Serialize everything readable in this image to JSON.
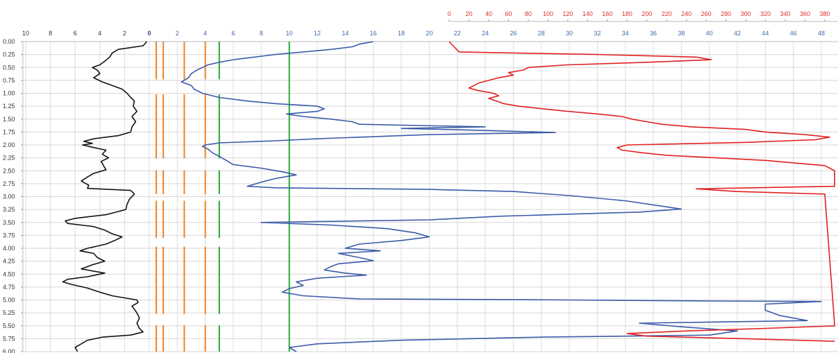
{
  "chart_data": {
    "type": "line",
    "title": "",
    "grid": true,
    "y_axis": {
      "orientation": "depth-down",
      "range": [
        0,
        6
      ],
      "tick_labels": [
        "0.00",
        "0.25",
        "0.50",
        "0.75",
        "1.00",
        "1.25",
        "1.50",
        "1.75",
        "2.00",
        "2.25",
        "2.50",
        "2.75",
        "3.00",
        "3.25",
        "3.50",
        "3.75",
        "4.00",
        "4.25",
        "4.50",
        "4.75",
        "5.00",
        "5.25",
        "5.50",
        "5.75",
        "6.00"
      ]
    },
    "x_axes": [
      {
        "id": "black",
        "color": "#333333",
        "range": [
          10,
          -10
        ],
        "tick_labels": [
          "10",
          "8",
          "6",
          "4",
          "2",
          "0"
        ]
      },
      {
        "id": "blue",
        "color": "#4068b0",
        "range": [
          0,
          48
        ],
        "tick_labels": [
          "0",
          "2",
          "4",
          "6",
          "8",
          "10",
          "12",
          "14",
          "16",
          "18",
          "20",
          "22",
          "24",
          "26",
          "28",
          "30",
          "32",
          "34",
          "36",
          "38",
          "40",
          "42",
          "44",
          "46",
          "48"
        ]
      },
      {
        "id": "red",
        "color": "#e03030",
        "range": [
          0,
          390
        ],
        "tick_labels": [
          "0",
          "20",
          "40",
          "60",
          "80",
          "100",
          "120",
          "140",
          "160",
          "180",
          "200",
          "220",
          "240",
          "260",
          "280",
          "300",
          "320",
          "340",
          "360",
          "380"
        ]
      }
    ],
    "reference_lines": [
      {
        "axis": "blue",
        "value": 0.5,
        "color": "#f08020"
      },
      {
        "axis": "blue",
        "value": 1,
        "color": "#f08020"
      },
      {
        "axis": "blue",
        "value": 2.5,
        "color": "#f08020"
      },
      {
        "axis": "blue",
        "value": 4,
        "color": "#f08020"
      },
      {
        "axis": "blue",
        "value": 5,
        "color": "#22aa33"
      },
      {
        "axis": "blue",
        "value": 10,
        "color": "#22aa33"
      }
    ],
    "series": [
      {
        "axis": "black",
        "color": "#111111",
        "points": [
          [
            0.0,
            0.2
          ],
          [
            0.08,
            0.5
          ],
          [
            0.15,
            2.5
          ],
          [
            0.22,
            3.0
          ],
          [
            0.3,
            3.2
          ],
          [
            0.38,
            3.6
          ],
          [
            0.45,
            4.0
          ],
          [
            0.5,
            4.6
          ],
          [
            0.55,
            4.2
          ],
          [
            0.62,
            4.0
          ],
          [
            0.7,
            4.5
          ],
          [
            0.78,
            3.8
          ],
          [
            0.85,
            3.0
          ],
          [
            0.92,
            2.2
          ],
          [
            1.0,
            1.8
          ],
          [
            1.08,
            1.5
          ],
          [
            1.15,
            1.2
          ],
          [
            1.25,
            1.3
          ],
          [
            1.35,
            1.0
          ],
          [
            1.45,
            1.4
          ],
          [
            1.55,
            1.1
          ],
          [
            1.65,
            1.4
          ],
          [
            1.75,
            1.5
          ],
          [
            1.82,
            2.5
          ],
          [
            1.88,
            4.5
          ],
          [
            1.93,
            5.3
          ],
          [
            1.97,
            4.6
          ],
          [
            2.0,
            5.4
          ],
          [
            2.05,
            4.5
          ],
          [
            2.1,
            3.5
          ],
          [
            2.18,
            3.8
          ],
          [
            2.25,
            3.3
          ],
          [
            2.32,
            3.9
          ],
          [
            2.4,
            3.7
          ],
          [
            2.48,
            3.5
          ],
          [
            2.55,
            4.5
          ],
          [
            2.62,
            5.0
          ],
          [
            2.7,
            5.5
          ],
          [
            2.78,
            4.9
          ],
          [
            2.84,
            5.0
          ],
          [
            2.88,
            1.5
          ],
          [
            2.95,
            1.2
          ],
          [
            3.05,
            1.6
          ],
          [
            3.15,
            1.8
          ],
          [
            3.25,
            1.9
          ],
          [
            3.35,
            3.5
          ],
          [
            3.42,
            6.0
          ],
          [
            3.47,
            6.8
          ],
          [
            3.52,
            6.6
          ],
          [
            3.58,
            4.5
          ],
          [
            3.65,
            3.6
          ],
          [
            3.72,
            3.0
          ],
          [
            3.78,
            2.2
          ],
          [
            3.85,
            2.8
          ],
          [
            3.92,
            3.5
          ],
          [
            4.0,
            5.0
          ],
          [
            4.05,
            5.6
          ],
          [
            4.1,
            4.5
          ],
          [
            4.18,
            4.2
          ],
          [
            4.25,
            3.6
          ],
          [
            4.32,
            4.6
          ],
          [
            4.4,
            5.5
          ],
          [
            4.48,
            3.6
          ],
          [
            4.55,
            5.0
          ],
          [
            4.6,
            6.6
          ],
          [
            4.65,
            7.0
          ],
          [
            4.7,
            6.3
          ],
          [
            4.77,
            5.0
          ],
          [
            4.85,
            4.0
          ],
          [
            4.92,
            3.0
          ],
          [
            5.0,
            1.0
          ],
          [
            5.05,
            0.9
          ],
          [
            5.12,
            1.4
          ],
          [
            5.25,
            1.0
          ],
          [
            5.35,
            0.8
          ],
          [
            5.45,
            1.0
          ],
          [
            5.55,
            0.8
          ],
          [
            5.62,
            0.5
          ],
          [
            5.68,
            1.5
          ],
          [
            5.72,
            3.8
          ],
          [
            5.78,
            5.0
          ],
          [
            5.85,
            5.5
          ],
          [
            5.92,
            6.0
          ],
          [
            6.0,
            5.8
          ]
        ]
      },
      {
        "axis": "blue",
        "color": "#3a5aa8",
        "points": [
          [
            0.0,
            16.0
          ],
          [
            0.05,
            15.0
          ],
          [
            0.1,
            14.5
          ],
          [
            0.15,
            13.0
          ],
          [
            0.2,
            11.0
          ],
          [
            0.25,
            9.0
          ],
          [
            0.3,
            7.5
          ],
          [
            0.35,
            6.0
          ],
          [
            0.4,
            5.0
          ],
          [
            0.45,
            4.2
          ],
          [
            0.5,
            3.8
          ],
          [
            0.55,
            3.4
          ],
          [
            0.62,
            3.0
          ],
          [
            0.7,
            2.8
          ],
          [
            0.78,
            2.3
          ],
          [
            0.85,
            3.0
          ],
          [
            0.92,
            3.2
          ],
          [
            1.0,
            3.8
          ],
          [
            1.08,
            5.0
          ],
          [
            1.15,
            7.0
          ],
          [
            1.2,
            9.0
          ],
          [
            1.25,
            12.0
          ],
          [
            1.3,
            12.5
          ],
          [
            1.35,
            12.0
          ],
          [
            1.4,
            9.8
          ],
          [
            1.45,
            11.0
          ],
          [
            1.5,
            13.0
          ],
          [
            1.55,
            14.5
          ],
          [
            1.6,
            15.0
          ],
          [
            1.65,
            24.0
          ],
          [
            1.68,
            18.0
          ],
          [
            1.72,
            24.0
          ],
          [
            1.76,
            29.0
          ],
          [
            1.8,
            20.0
          ],
          [
            1.85,
            15.0
          ],
          [
            1.88,
            12.0
          ],
          [
            1.92,
            9.0
          ],
          [
            1.96,
            5.0
          ],
          [
            2.0,
            4.0
          ],
          [
            2.03,
            3.8
          ],
          [
            2.08,
            4.2
          ],
          [
            2.15,
            4.5
          ],
          [
            2.22,
            5.0
          ],
          [
            2.3,
            5.5
          ],
          [
            2.38,
            6.0
          ],
          [
            2.45,
            8.0
          ],
          [
            2.52,
            9.5
          ],
          [
            2.58,
            10.5
          ],
          [
            2.65,
            9.0
          ],
          [
            2.72,
            8.0
          ],
          [
            2.8,
            7.0
          ],
          [
            2.83,
            9.0
          ],
          [
            2.86,
            20.0
          ],
          [
            2.9,
            26.0
          ],
          [
            2.98,
            30.0
          ],
          [
            3.08,
            34.0
          ],
          [
            3.18,
            36.5
          ],
          [
            3.24,
            38.0
          ],
          [
            3.3,
            35.0
          ],
          [
            3.38,
            25.0
          ],
          [
            3.45,
            20.0
          ],
          [
            3.5,
            8.0
          ],
          [
            3.55,
            13.0
          ],
          [
            3.62,
            17.0
          ],
          [
            3.7,
            19.0
          ],
          [
            3.78,
            20.0
          ],
          [
            3.85,
            18.0
          ],
          [
            3.92,
            15.0
          ],
          [
            4.0,
            14.0
          ],
          [
            4.05,
            16.5
          ],
          [
            4.1,
            13.5
          ],
          [
            4.18,
            15.0
          ],
          [
            4.24,
            16.0
          ],
          [
            4.3,
            13.5
          ],
          [
            4.35,
            13.0
          ],
          [
            4.42,
            12.5
          ],
          [
            4.48,
            14.0
          ],
          [
            4.52,
            15.5
          ],
          [
            4.58,
            12.0
          ],
          [
            4.65,
            10.5
          ],
          [
            4.72,
            11.0
          ],
          [
            4.78,
            10.0
          ],
          [
            4.85,
            9.5
          ],
          [
            4.92,
            11.0
          ],
          [
            4.98,
            15.0
          ],
          [
            5.0,
            30.0
          ],
          [
            5.02,
            40.0
          ],
          [
            5.03,
            48.0
          ],
          [
            5.08,
            44.0
          ],
          [
            5.2,
            44.0
          ],
          [
            5.3,
            45.0
          ],
          [
            5.4,
            47.0
          ],
          [
            5.45,
            35.0
          ],
          [
            5.52,
            38.0
          ],
          [
            5.6,
            42.0
          ],
          [
            5.68,
            40.0
          ],
          [
            5.72,
            28.0
          ],
          [
            5.78,
            18.0
          ],
          [
            5.85,
            12.0
          ],
          [
            5.92,
            10.0
          ],
          [
            6.0,
            10.5
          ]
        ]
      },
      {
        "axis": "red",
        "color": "#e02020",
        "points": [
          [
            0.0,
            0
          ],
          [
            0.1,
            5
          ],
          [
            0.2,
            10
          ],
          [
            0.25,
            150
          ],
          [
            0.3,
            250
          ],
          [
            0.35,
            265
          ],
          [
            0.4,
            200
          ],
          [
            0.45,
            120
          ],
          [
            0.5,
            80
          ],
          [
            0.55,
            75
          ],
          [
            0.6,
            60
          ],
          [
            0.65,
            65
          ],
          [
            0.7,
            50
          ],
          [
            0.75,
            40
          ],
          [
            0.8,
            30
          ],
          [
            0.85,
            25
          ],
          [
            0.9,
            20
          ],
          [
            0.95,
            30
          ],
          [
            1.0,
            45
          ],
          [
            1.05,
            50
          ],
          [
            1.1,
            40
          ],
          [
            1.15,
            48
          ],
          [
            1.2,
            55
          ],
          [
            1.25,
            70
          ],
          [
            1.3,
            95
          ],
          [
            1.35,
            120
          ],
          [
            1.4,
            150
          ],
          [
            1.45,
            175
          ],
          [
            1.5,
            185
          ],
          [
            1.55,
            200
          ],
          [
            1.6,
            215
          ],
          [
            1.65,
            245
          ],
          [
            1.7,
            300
          ],
          [
            1.75,
            320
          ],
          [
            1.8,
            360
          ],
          [
            1.85,
            385
          ],
          [
            1.9,
            370
          ],
          [
            1.95,
            300
          ],
          [
            2.0,
            180
          ],
          [
            2.05,
            170
          ],
          [
            2.1,
            175
          ],
          [
            2.15,
            195
          ],
          [
            2.2,
            220
          ],
          [
            2.25,
            270
          ],
          [
            2.3,
            320
          ],
          [
            2.35,
            350
          ],
          [
            2.4,
            380
          ],
          [
            2.45,
            385
          ],
          [
            2.5,
            390
          ],
          [
            2.8,
            390
          ],
          [
            2.85,
            250
          ],
          [
            2.9,
            290
          ],
          [
            2.95,
            380
          ],
          [
            5.5,
            390
          ],
          [
            5.55,
            320
          ],
          [
            5.6,
            240
          ],
          [
            5.65,
            180
          ],
          [
            5.7,
            200
          ],
          [
            5.75,
            300
          ],
          [
            5.8,
            390
          ]
        ]
      }
    ]
  }
}
